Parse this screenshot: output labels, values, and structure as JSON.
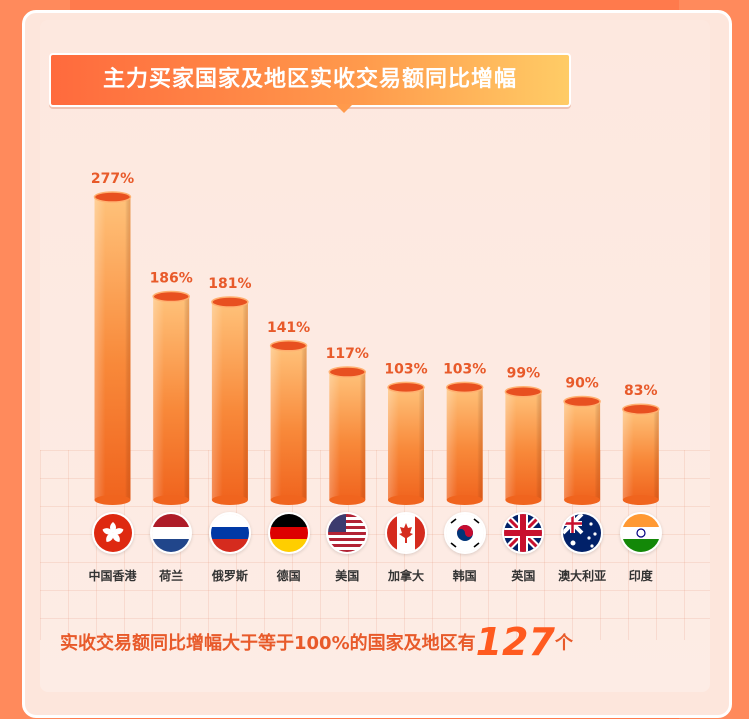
{
  "title": "主力买家国家及地区实收交易额同比增幅",
  "chart_data": {
    "type": "bar",
    "categories": [
      "中国香港",
      "荷兰",
      "俄罗斯",
      "德国",
      "美国",
      "加拿大",
      "韩国",
      "英国",
      "澳大利亚",
      "印度"
    ],
    "values": [
      277,
      186,
      181,
      141,
      117,
      103,
      103,
      99,
      90,
      83
    ],
    "value_labels": [
      "277%",
      "186%",
      "181%",
      "141%",
      "117%",
      "103%",
      "103%",
      "99%",
      "90%",
      "83%"
    ],
    "unit": "%",
    "grid": false
  },
  "flags": [
    "hong-kong-flag-icon",
    "netherlands-flag-icon",
    "russia-flag-icon",
    "germany-flag-icon",
    "usa-flag-icon",
    "canada-flag-icon",
    "korea-flag-icon",
    "uk-flag-icon",
    "australia-flag-icon",
    "india-flag-icon"
  ],
  "footer": {
    "prefix": "实收交易额同比增幅大于等于100%的国家及地区有",
    "count": "127",
    "suffix": "个"
  },
  "colors": {
    "bar_light": "#ffc27a",
    "bar_dark": "#f0641e",
    "label": "#e85a2a"
  }
}
